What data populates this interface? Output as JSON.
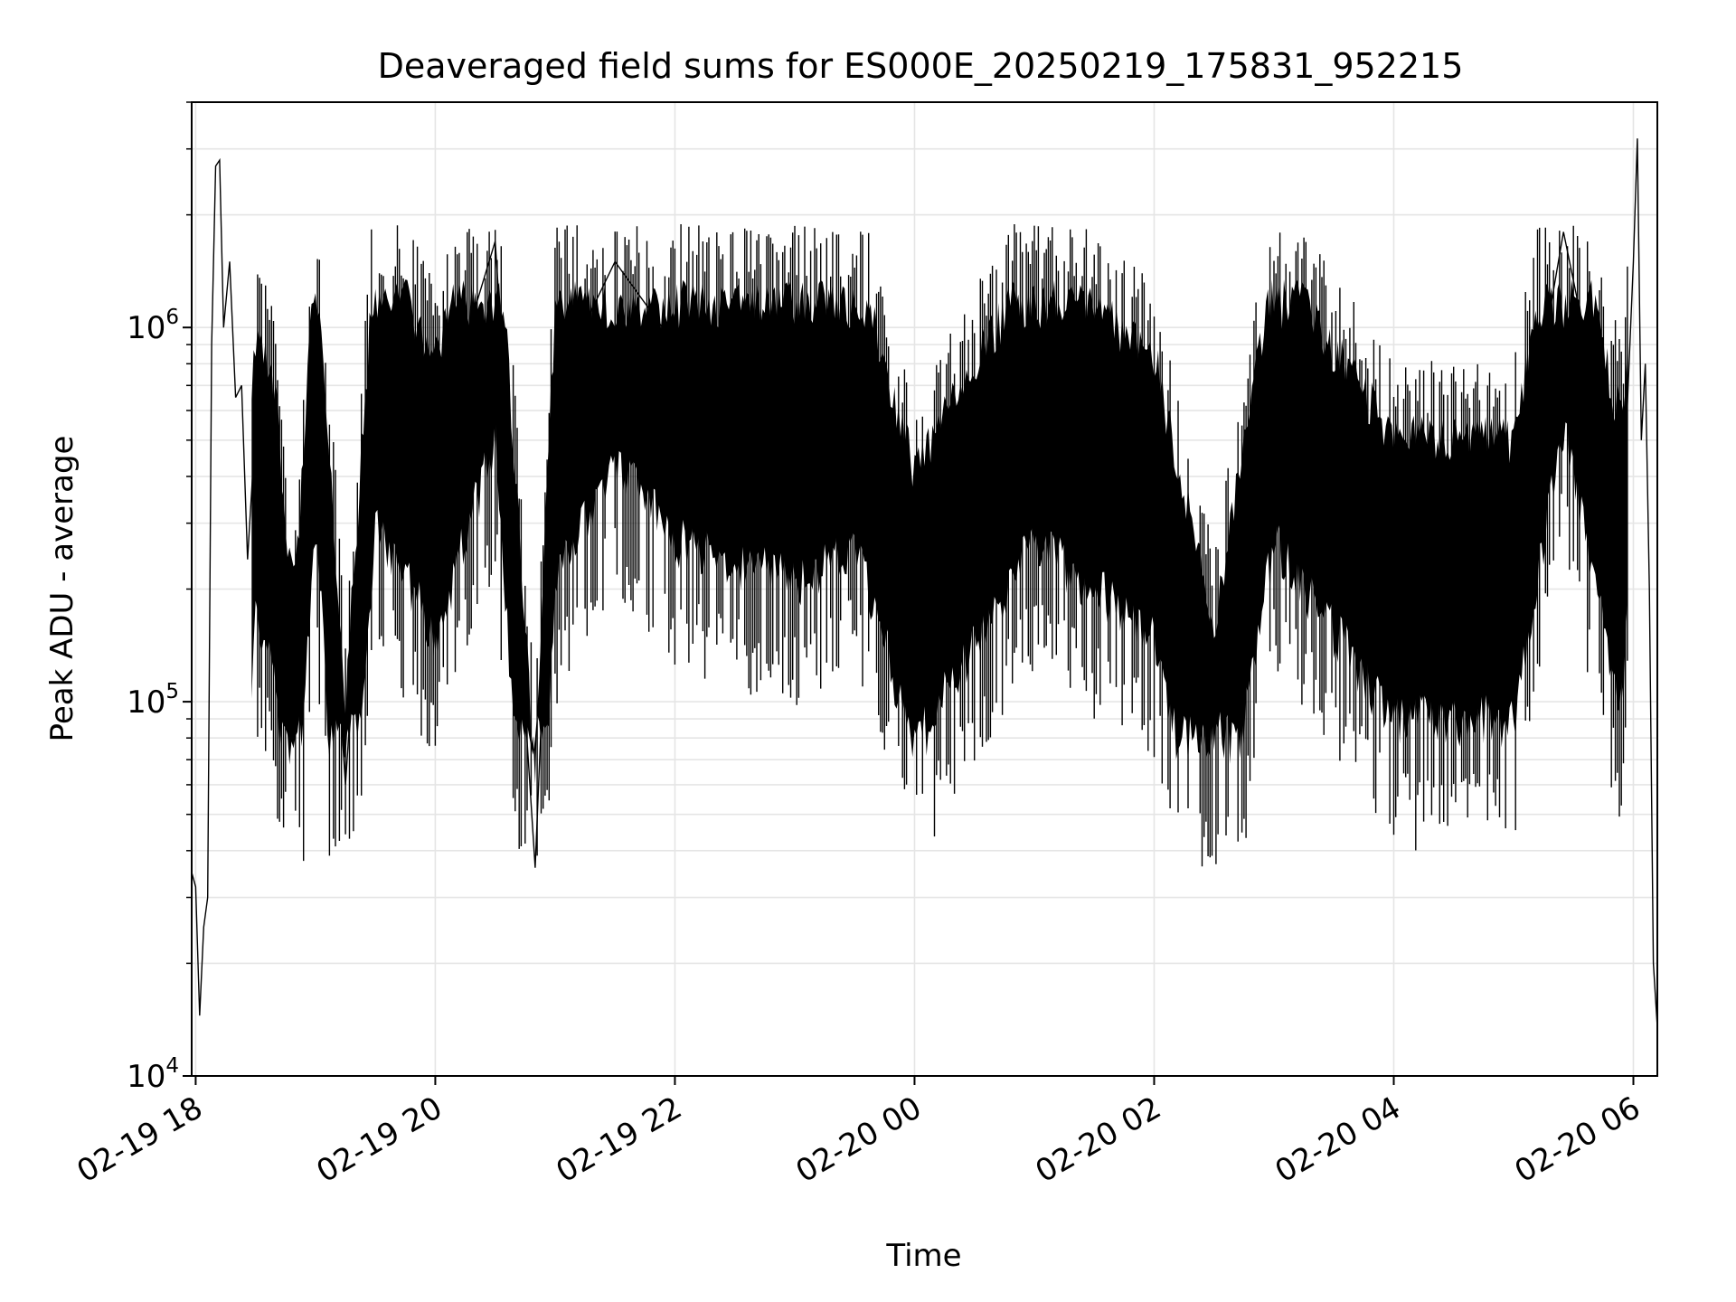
{
  "chart_data": {
    "type": "line",
    "title": "Deaveraged field sums for ES000E_20250219_175831_952215",
    "xlabel": "Time",
    "ylabel": "Peak ADU - average",
    "yscale": "log",
    "ylim": [
      10000,
      4000000
    ],
    "xlim": [
      "2025-02-19 17:58",
      "2025-02-20 06:12"
    ],
    "xticks": [
      {
        "t": "2025-02-19 18:00",
        "label": "02-19 18"
      },
      {
        "t": "2025-02-19 20:00",
        "label": "02-19 20"
      },
      {
        "t": "2025-02-19 22:00",
        "label": "02-19 22"
      },
      {
        "t": "2025-02-20 00:00",
        "label": "02-20 00"
      },
      {
        "t": "2025-02-20 02:00",
        "label": "02-20 02"
      },
      {
        "t": "2025-02-20 04:00",
        "label": "02-20 04"
      },
      {
        "t": "2025-02-20 06:00",
        "label": "02-20 06"
      }
    ],
    "yticks": [
      {
        "value": 10000,
        "base": "10",
        "exp": "4"
      },
      {
        "value": 100000,
        "base": "10",
        "exp": "5"
      },
      {
        "value": 1000000,
        "base": "10",
        "exp": "6"
      }
    ],
    "grid": true,
    "line_color": "#000000",
    "series": [
      {
        "x": [
          "2025-02-19 17:58",
          "2025-02-19 18:00",
          "2025-02-19 18:02",
          "2025-02-19 18:04",
          "2025-02-19 18:06",
          "2025-02-19 18:08",
          "2025-02-19 18:10",
          "2025-02-19 18:12",
          "2025-02-19 18:14",
          "2025-02-19 18:17",
          "2025-02-19 18:20",
          "2025-02-19 18:23",
          "2025-02-19 18:26",
          "2025-02-19 18:30",
          "2025-02-19 18:35",
          "2025-02-19 18:40",
          "2025-02-19 18:45",
          "2025-02-19 18:50",
          "2025-02-19 19:00",
          "2025-02-19 19:15",
          "2025-02-19 19:30",
          "2025-02-19 20:00",
          "2025-02-19 20:30",
          "2025-02-19 20:50",
          "2025-02-19 21:00",
          "2025-02-19 21:30",
          "2025-02-19 22:00",
          "2025-02-19 23:00",
          "2025-02-19 23:30",
          "2025-02-20 00:00",
          "2025-02-20 01:00",
          "2025-02-20 02:00",
          "2025-02-20 02:30",
          "2025-02-20 03:00",
          "2025-02-20 04:00",
          "2025-02-20 05:00",
          "2025-02-20 05:25",
          "2025-02-20 05:50",
          "2025-02-20 05:55",
          "2025-02-20 06:00",
          "2025-02-20 06:02",
          "2025-02-20 06:04",
          "2025-02-20 06:06",
          "2025-02-20 06:08",
          "2025-02-20 06:10",
          "2025-02-20 06:12"
        ],
        "y": [
          35000,
          32000,
          14500,
          25000,
          30000,
          900000,
          2700000,
          2800000,
          1000000,
          1500000,
          650000,
          700000,
          240000,
          550000,
          500000,
          400000,
          170000,
          120000,
          1000000,
          60000,
          1000000,
          500000,
          1700000,
          36000,
          700000,
          1500000,
          900000,
          700000,
          900000,
          250000,
          900000,
          500000,
          95000,
          900000,
          300000,
          300000,
          1800000,
          400000,
          350000,
          1500000,
          3200000,
          500000,
          800000,
          200000,
          20000,
          13500
        ]
      }
    ]
  }
}
